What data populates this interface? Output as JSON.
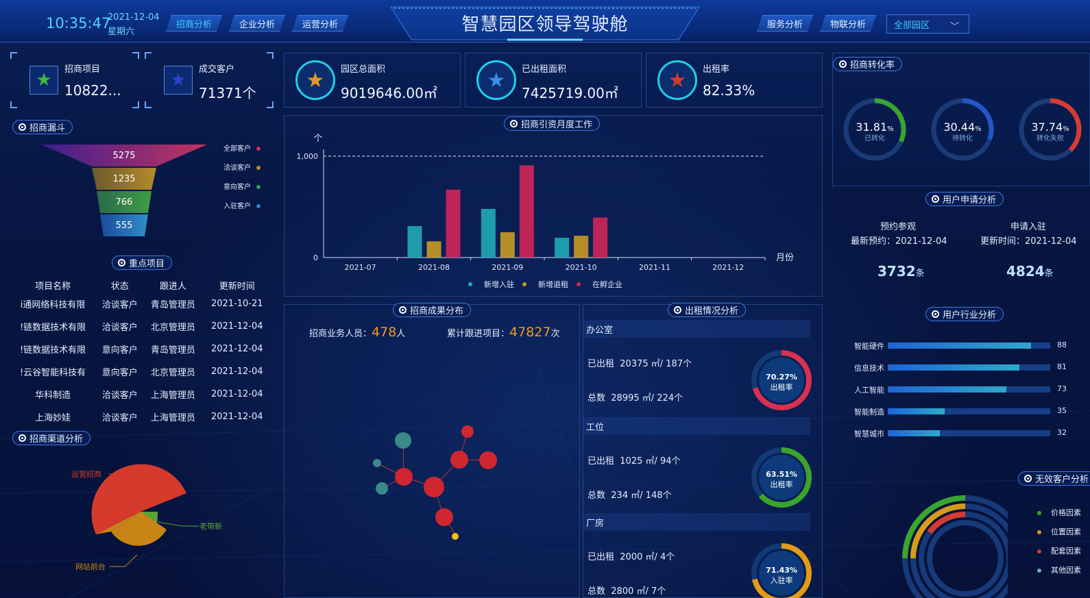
{
  "header": {
    "time": "10:35:47",
    "date": "2021-12-04",
    "weekday": "星期六",
    "title": "智慧园区领导驾驶舱",
    "nav_left": [
      "招商分析",
      "企业分析",
      "运营分析"
    ],
    "nav_right": [
      "服务分析",
      "物联分析"
    ],
    "park_select": "全部园区"
  },
  "stats": {
    "projects": {
      "label": "招商项目",
      "value": "10822..."
    },
    "customers": {
      "label": "成交客户",
      "value": "71371个"
    },
    "total_area": {
      "label": "园区总面积",
      "value": "9019646.00㎡"
    },
    "rented_area": {
      "label": "已出租面积",
      "value": "7425719.00㎡"
    },
    "rent_rate": {
      "label": "出租率",
      "value": "82.33%"
    }
  },
  "funnel": {
    "title": "招商漏斗",
    "stages": [
      {
        "value": "5275",
        "legend": "全部客户",
        "color": "#c2345f"
      },
      {
        "value": "1235",
        "legend": "洽谈客户",
        "color": "#b58a2b"
      },
      {
        "value": "766",
        "legend": "意向客户",
        "color": "#3f9e45"
      },
      {
        "value": "555",
        "legend": "入驻客户",
        "color": "#2f7fc8"
      }
    ]
  },
  "key_projects": {
    "title": "重点项目",
    "headers": [
      "项目名称",
      "状态",
      "跟进人",
      "更新时间"
    ],
    "rows": [
      [
        "i通网络科技有限",
        "洽谈客户",
        "青岛管理员",
        "2021-10-21"
      ],
      [
        "!链数据技术有限",
        "洽谈客户",
        "北京管理员",
        "2021-12-04"
      ],
      [
        "!链数据技术有限",
        "意向客户",
        "青岛管理员",
        "2021-12-04"
      ],
      [
        "!云谷智能科技有",
        "意向客户",
        "北京管理员",
        "2021-12-04"
      ],
      [
        "华科制造",
        "洽谈客户",
        "上海管理员",
        "2021-12-04"
      ],
      [
        "上海妙娃",
        "洽谈客户",
        "上海管理员",
        "2021-12-04"
      ]
    ]
  },
  "channel": {
    "title": "招商渠道分析",
    "labels": [
      "运营招商",
      "老带新",
      "网站前台"
    ],
    "colors": [
      "#d63a2c",
      "#5aa336",
      "#c88414"
    ]
  },
  "monthly": {
    "title": "招商引资月度工作",
    "unit_y": "个",
    "unit_x": "月份",
    "ytick_labels": [
      "0",
      "1,000"
    ]
  },
  "chart_data": {
    "type": "bar",
    "title": "招商引资月度工作",
    "xlabel": "月份",
    "ylabel": "个",
    "categories": [
      "2021-07",
      "2021-08",
      "2021-09",
      "2021-10",
      "2021-11",
      "2021-12"
    ],
    "series": [
      {
        "name": "新增入驻",
        "color": "#21a8b8",
        "values": [
          0,
          310,
          480,
          195,
          0,
          0
        ]
      },
      {
        "name": "新增退租",
        "color": "#c89a22",
        "values": [
          0,
          160,
          250,
          215,
          0,
          0
        ]
      },
      {
        "name": "在孵企业",
        "color": "#d0265a",
        "values": [
          0,
          670,
          910,
          395,
          0,
          0
        ]
      }
    ],
    "ylim": [
      0,
      1000
    ],
    "grid": false,
    "legend": "bottom"
  },
  "results": {
    "title": "招商成果分布",
    "staff_label": "招商业务人员：",
    "staff_value": "478",
    "staff_unit": "人",
    "follow_label": "累计跟进项目：",
    "follow_value": "47827",
    "follow_unit": "次"
  },
  "rent": {
    "title": "出租情况分析",
    "sections": [
      {
        "name": "办公室",
        "rented": "20375 ㎡/ 187个",
        "total": "28995 ㎡/ 224个",
        "rate": "70.27%",
        "rate_label": "出租率",
        "color": "#d8304f"
      },
      {
        "name": "工位",
        "rented": "1025 ㎡/ 94个",
        "total": "234 ㎡/ 148个",
        "rate": "63.51%",
        "rate_label": "出租率",
        "color": "#39a52b"
      },
      {
        "name": "厂房",
        "rented": "2000 ㎡/ 4个",
        "total": "2800 ㎡/ 7个",
        "rate": "71.43%",
        "rate_label": "入驻率",
        "color": "#e39a14"
      }
    ],
    "rented_label": "已出租",
    "total_label": "总数"
  },
  "conversion": {
    "title": "招商转化率",
    "items": [
      {
        "value": "31.81",
        "pct": "%",
        "label": "已转化",
        "color": "#3aa52f"
      },
      {
        "value": "30.44",
        "pct": "%",
        "label": "待转化",
        "color": "#2456c8"
      },
      {
        "value": "37.74",
        "pct": "%",
        "label": "转化失败",
        "color": "#d63b32"
      }
    ]
  },
  "apply": {
    "title": "用户申请分析",
    "left_title": "预约参观",
    "left_sub": "最新预约：2021-12-04",
    "left_value": "3732",
    "right_title": "申请入驻",
    "right_sub": "更新时间：2021-12-04",
    "right_value": "4824",
    "unit": "条"
  },
  "industry": {
    "title": "用户行业分析",
    "items": [
      {
        "label": "智能硬件",
        "value": 88
      },
      {
        "label": "信息技术",
        "value": 81
      },
      {
        "label": "人工智能",
        "value": 73
      },
      {
        "label": "智能制造",
        "value": 35
      },
      {
        "label": "智慧城市",
        "value": 32
      }
    ]
  },
  "invalid": {
    "title": "无效客户分析",
    "legend": [
      {
        "label": "价格因素",
        "color": "#3aa52f"
      },
      {
        "label": "位置因素",
        "color": "#d79b1a"
      },
      {
        "label": "配套因素",
        "color": "#d63b32"
      },
      {
        "label": "其他因素",
        "color": "#6fb1b8"
      }
    ]
  }
}
